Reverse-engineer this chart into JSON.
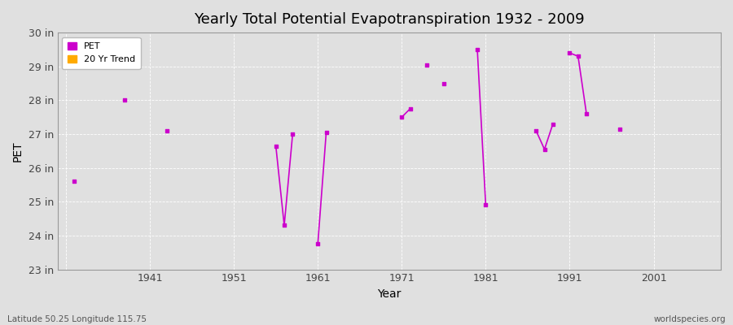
{
  "title": "Yearly Total Potential Evapotranspiration 1932 - 2009",
  "xlabel": "Year",
  "ylabel": "PET",
  "background_color": "#e0e0e0",
  "plot_bg_color": "#e0e0e0",
  "ylim": [
    23,
    30
  ],
  "yticks": [
    23,
    24,
    25,
    26,
    27,
    28,
    29,
    30
  ],
  "ytick_labels": [
    "23 in",
    "24 in",
    "25 in",
    "26 in",
    "27 in",
    "28 in",
    "29 in",
    "30 in"
  ],
  "xlim": [
    1930,
    2009
  ],
  "xticks": [
    1931,
    1941,
    1951,
    1961,
    1971,
    1981,
    1991,
    2001
  ],
  "xtick_labels": [
    "",
    "1941",
    "1951",
    "1961",
    "1971",
    "1981",
    "1991",
    "2001"
  ],
  "pet_color": "#cc00cc",
  "trend_color": "#ffaa00",
  "isolated_points": [
    [
      1932,
      25.6
    ],
    [
      1938,
      28.0
    ],
    [
      1943,
      27.1
    ],
    [
      1974,
      29.05
    ],
    [
      1976,
      28.5
    ],
    [
      1997,
      27.15
    ]
  ],
  "line_groups": [
    [
      [
        1956,
        26.65
      ],
      [
        1957,
        24.3
      ],
      [
        1958,
        27.0
      ]
    ],
    [
      [
        1961,
        23.75
      ],
      [
        1962,
        27.05
      ]
    ],
    [
      [
        1971,
        27.5
      ],
      [
        1972,
        27.75
      ]
    ],
    [
      [
        1980,
        29.5
      ],
      [
        1981,
        24.9
      ]
    ],
    [
      [
        1987,
        27.1
      ],
      [
        1988,
        26.55
      ],
      [
        1989,
        27.3
      ]
    ],
    [
      [
        1991,
        29.4
      ],
      [
        1992,
        29.3
      ],
      [
        1993,
        27.6
      ]
    ]
  ],
  "footnote_left": "Latitude 50.25 Longitude 115.75",
  "footnote_right": "worldspecies.org"
}
